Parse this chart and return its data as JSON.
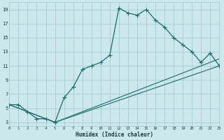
{
  "xlabel": "Humidex (Indice chaleur)",
  "bg_color": "#cce8ec",
  "grid_color": "#a8d0d8",
  "line_color": "#1a6b6b",
  "line1_x": [
    0,
    1,
    2,
    3,
    4,
    5,
    6,
    7,
    8,
    9,
    10,
    11,
    12,
    13,
    14,
    15,
    16,
    17,
    18,
    19,
    20,
    21,
    22,
    23
  ],
  "line1_y": [
    5.5,
    5.5,
    4.5,
    3.5,
    3.5,
    3.0,
    6.5,
    8.0,
    10.5,
    11.0,
    11.5,
    12.5,
    19.2,
    18.5,
    18.2,
    19.0,
    17.5,
    16.5,
    15.0,
    14.0,
    13.0,
    11.5,
    12.8,
    11.0
  ],
  "line2_x": [
    0,
    5,
    23
  ],
  "line2_y": [
    5.5,
    3.0,
    11.0
  ],
  "line3_x": [
    0,
    5,
    23
  ],
  "line3_y": [
    5.5,
    3.0,
    12.0
  ],
  "xlim": [
    0,
    23
  ],
  "ylim": [
    2.5,
    20
  ],
  "yticks": [
    3,
    5,
    7,
    9,
    11,
    13,
    15,
    17,
    19
  ],
  "xticks": [
    0,
    1,
    2,
    3,
    4,
    5,
    6,
    7,
    8,
    9,
    10,
    11,
    12,
    13,
    14,
    15,
    16,
    17,
    18,
    19,
    20,
    21,
    22,
    23
  ]
}
